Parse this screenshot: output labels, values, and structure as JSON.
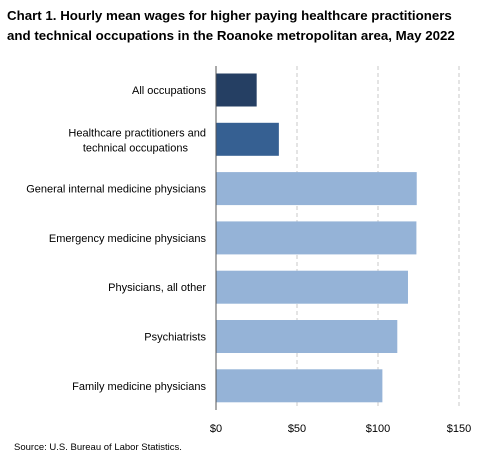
{
  "chart_data": {
    "type": "bar",
    "orientation": "horizontal",
    "title": "Chart 1. Hourly mean wages for higher paying healthcare practitioners and technical occupations in the Roanoke metropolitan area, May 2022",
    "categories": [
      "All occupations",
      "Healthcare practitioners and technical occupations",
      "General internal medicine physicians",
      "Emergency medicine physicians",
      "Physicians, all other",
      "Psychiatrists",
      "Family medicine physicians"
    ],
    "values": [
      24.8,
      38.5,
      123.6,
      123.4,
      118.2,
      111.6,
      102.4
    ],
    "bar_colors": [
      "#253f63",
      "#366092",
      "#95b3d7",
      "#95b3d7",
      "#95b3d7",
      "#95b3d7",
      "#95b3d7"
    ],
    "xlim": [
      0,
      150
    ],
    "xticks": [
      0,
      50,
      100,
      150
    ],
    "xtick_labels": [
      "$0",
      "$50",
      "$100",
      "$150"
    ],
    "grid": "vertical dashed",
    "legend": "none",
    "source": "Source: U.S. Bureau of Labor Statistics."
  }
}
